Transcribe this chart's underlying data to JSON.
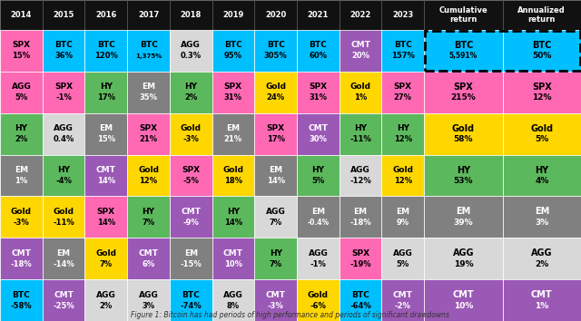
{
  "col_headers": [
    "2014",
    "2015",
    "2016",
    "2017",
    "2018",
    "2019",
    "2020",
    "2021",
    "2022",
    "2023",
    "Cumulative\nreturn",
    "Annualized\nreturn"
  ],
  "rows": [
    [
      {
        "label": "SPX",
        "value": "15%",
        "color": "#ff69b4",
        "text_color": "black"
      },
      {
        "label": "BTC",
        "value": "36%",
        "color": "#00bfff",
        "text_color": "black"
      },
      {
        "label": "BTC",
        "value": "120%",
        "color": "#00bfff",
        "text_color": "black"
      },
      {
        "label": "BTC",
        "value": "1,375%",
        "color": "#00bfff",
        "text_color": "black"
      },
      {
        "label": "AGG",
        "value": "0.3%",
        "color": "#d8d8d8",
        "text_color": "black"
      },
      {
        "label": "BTC",
        "value": "95%",
        "color": "#00bfff",
        "text_color": "black"
      },
      {
        "label": "BTC",
        "value": "305%",
        "color": "#00bfff",
        "text_color": "black"
      },
      {
        "label": "BTC",
        "value": "60%",
        "color": "#00bfff",
        "text_color": "black"
      },
      {
        "label": "CMT",
        "value": "20%",
        "color": "#9b59b6",
        "text_color": "white"
      },
      {
        "label": "BTC",
        "value": "157%",
        "color": "#00bfff",
        "text_color": "black"
      },
      {
        "label": "BTC",
        "value": "5,591%",
        "color": "#00bfff",
        "text_color": "black",
        "dashed": true
      },
      {
        "label": "BTC",
        "value": "50%",
        "color": "#00bfff",
        "text_color": "black",
        "dashed": true
      }
    ],
    [
      {
        "label": "AGG",
        "value": "5%",
        "color": "#ff69b4",
        "text_color": "black"
      },
      {
        "label": "SPX",
        "value": "-1%",
        "color": "#ff69b4",
        "text_color": "black"
      },
      {
        "label": "HY",
        "value": "17%",
        "color": "#5cb85c",
        "text_color": "black"
      },
      {
        "label": "EM",
        "value": "35%",
        "color": "#808080",
        "text_color": "white"
      },
      {
        "label": "HY",
        "value": "2%",
        "color": "#5cb85c",
        "text_color": "black"
      },
      {
        "label": "SPX",
        "value": "31%",
        "color": "#ff69b4",
        "text_color": "black"
      },
      {
        "label": "Gold",
        "value": "24%",
        "color": "#ffd700",
        "text_color": "black"
      },
      {
        "label": "SPX",
        "value": "31%",
        "color": "#ff69b4",
        "text_color": "black"
      },
      {
        "label": "Gold",
        "value": "1%",
        "color": "#ffd700",
        "text_color": "black"
      },
      {
        "label": "SPX",
        "value": "27%",
        "color": "#ff69b4",
        "text_color": "black"
      },
      {
        "label": "SPX",
        "value": "215%",
        "color": "#ff69b4",
        "text_color": "black"
      },
      {
        "label": "SPX",
        "value": "12%",
        "color": "#ff69b4",
        "text_color": "black"
      }
    ],
    [
      {
        "label": "HY",
        "value": "2%",
        "color": "#5cb85c",
        "text_color": "black"
      },
      {
        "label": "AGG",
        "value": "0.4%",
        "color": "#d8d8d8",
        "text_color": "black"
      },
      {
        "label": "EM",
        "value": "15%",
        "color": "#808080",
        "text_color": "white"
      },
      {
        "label": "SPX",
        "value": "21%",
        "color": "#ff69b4",
        "text_color": "black"
      },
      {
        "label": "Gold",
        "value": "-3%",
        "color": "#ffd700",
        "text_color": "black"
      },
      {
        "label": "EM",
        "value": "21%",
        "color": "#808080",
        "text_color": "white"
      },
      {
        "label": "SPX",
        "value": "17%",
        "color": "#ff69b4",
        "text_color": "black"
      },
      {
        "label": "CMT",
        "value": "30%",
        "color": "#9b59b6",
        "text_color": "white"
      },
      {
        "label": "HY",
        "value": "-11%",
        "color": "#5cb85c",
        "text_color": "black"
      },
      {
        "label": "HY",
        "value": "12%",
        "color": "#5cb85c",
        "text_color": "black"
      },
      {
        "label": "Gold",
        "value": "58%",
        "color": "#ffd700",
        "text_color": "black"
      },
      {
        "label": "Gold",
        "value": "5%",
        "color": "#ffd700",
        "text_color": "black"
      }
    ],
    [
      {
        "label": "EM",
        "value": "1%",
        "color": "#808080",
        "text_color": "white"
      },
      {
        "label": "HY",
        "value": "-4%",
        "color": "#5cb85c",
        "text_color": "black"
      },
      {
        "label": "CMT",
        "value": "14%",
        "color": "#9b59b6",
        "text_color": "white"
      },
      {
        "label": "Gold",
        "value": "12%",
        "color": "#ffd700",
        "text_color": "black"
      },
      {
        "label": "SPX",
        "value": "-5%",
        "color": "#ff69b4",
        "text_color": "black"
      },
      {
        "label": "Gold",
        "value": "18%",
        "color": "#ffd700",
        "text_color": "black"
      },
      {
        "label": "EM",
        "value": "14%",
        "color": "#808080",
        "text_color": "white"
      },
      {
        "label": "HY",
        "value": "5%",
        "color": "#5cb85c",
        "text_color": "black"
      },
      {
        "label": "AGG",
        "value": "-12%",
        "color": "#d8d8d8",
        "text_color": "black"
      },
      {
        "label": "Gold",
        "value": "12%",
        "color": "#ffd700",
        "text_color": "black"
      },
      {
        "label": "HY",
        "value": "53%",
        "color": "#5cb85c",
        "text_color": "black"
      },
      {
        "label": "HY",
        "value": "4%",
        "color": "#5cb85c",
        "text_color": "black"
      }
    ],
    [
      {
        "label": "Gold",
        "value": "-3%",
        "color": "#ffd700",
        "text_color": "black"
      },
      {
        "label": "Gold",
        "value": "-11%",
        "color": "#ffd700",
        "text_color": "black"
      },
      {
        "label": "SPX",
        "value": "14%",
        "color": "#ff69b4",
        "text_color": "black"
      },
      {
        "label": "HY",
        "value": "7%",
        "color": "#5cb85c",
        "text_color": "black"
      },
      {
        "label": "CMT",
        "value": "-9%",
        "color": "#9b59b6",
        "text_color": "white"
      },
      {
        "label": "HY",
        "value": "14%",
        "color": "#5cb85c",
        "text_color": "black"
      },
      {
        "label": "AGG",
        "value": "7%",
        "color": "#d8d8d8",
        "text_color": "black"
      },
      {
        "label": "EM",
        "value": "-0.4%",
        "color": "#808080",
        "text_color": "white"
      },
      {
        "label": "EM",
        "value": "-18%",
        "color": "#808080",
        "text_color": "white"
      },
      {
        "label": "EM",
        "value": "9%",
        "color": "#808080",
        "text_color": "white"
      },
      {
        "label": "EM",
        "value": "39%",
        "color": "#808080",
        "text_color": "white"
      },
      {
        "label": "EM",
        "value": "3%",
        "color": "#808080",
        "text_color": "white"
      }
    ],
    [
      {
        "label": "CMT",
        "value": "-18%",
        "color": "#9b59b6",
        "text_color": "white"
      },
      {
        "label": "EM",
        "value": "-14%",
        "color": "#808080",
        "text_color": "white"
      },
      {
        "label": "Gold",
        "value": "7%",
        "color": "#ffd700",
        "text_color": "black"
      },
      {
        "label": "CMT",
        "value": "6%",
        "color": "#9b59b6",
        "text_color": "white"
      },
      {
        "label": "EM",
        "value": "-15%",
        "color": "#808080",
        "text_color": "white"
      },
      {
        "label": "CMT",
        "value": "10%",
        "color": "#9b59b6",
        "text_color": "white"
      },
      {
        "label": "HY",
        "value": "7%",
        "color": "#5cb85c",
        "text_color": "black"
      },
      {
        "label": "AGG",
        "value": "-1%",
        "color": "#d8d8d8",
        "text_color": "black"
      },
      {
        "label": "SPX",
        "value": "-19%",
        "color": "#ff69b4",
        "text_color": "black"
      },
      {
        "label": "AGG",
        "value": "5%",
        "color": "#d8d8d8",
        "text_color": "black"
      },
      {
        "label": "AGG",
        "value": "19%",
        "color": "#d8d8d8",
        "text_color": "black"
      },
      {
        "label": "AGG",
        "value": "2%",
        "color": "#d8d8d8",
        "text_color": "black"
      }
    ],
    [
      {
        "label": "BTC",
        "value": "-58%",
        "color": "#00bfff",
        "text_color": "black"
      },
      {
        "label": "CMT",
        "value": "-25%",
        "color": "#9b59b6",
        "text_color": "white"
      },
      {
        "label": "AGG",
        "value": "2%",
        "color": "#d8d8d8",
        "text_color": "black"
      },
      {
        "label": "AGG",
        "value": "3%",
        "color": "#d8d8d8",
        "text_color": "black"
      },
      {
        "label": "BTC",
        "value": "-74%",
        "color": "#00bfff",
        "text_color": "black"
      },
      {
        "label": "AGG",
        "value": "8%",
        "color": "#d8d8d8",
        "text_color": "black"
      },
      {
        "label": "CMT",
        "value": "-3%",
        "color": "#9b59b6",
        "text_color": "white"
      },
      {
        "label": "Gold",
        "value": "-6%",
        "color": "#ffd700",
        "text_color": "black"
      },
      {
        "label": "BTC",
        "value": "-64%",
        "color": "#00bfff",
        "text_color": "black"
      },
      {
        "label": "CMT",
        "value": "-2%",
        "color": "#9b59b6",
        "text_color": "white"
      },
      {
        "label": "CMT",
        "value": "10%",
        "color": "#9b59b6",
        "text_color": "white"
      },
      {
        "label": "CMT",
        "value": "1%",
        "color": "#9b59b6",
        "text_color": "white"
      }
    ]
  ],
  "header_bg": "#111111",
  "header_text": "white",
  "title": "Figure 1: Bitcoin has had periods of high performance and periods of significant drawdowns",
  "n_year_cols": 10,
  "n_summary_cols": 2,
  "total_cols": 12,
  "n_rows": 7
}
